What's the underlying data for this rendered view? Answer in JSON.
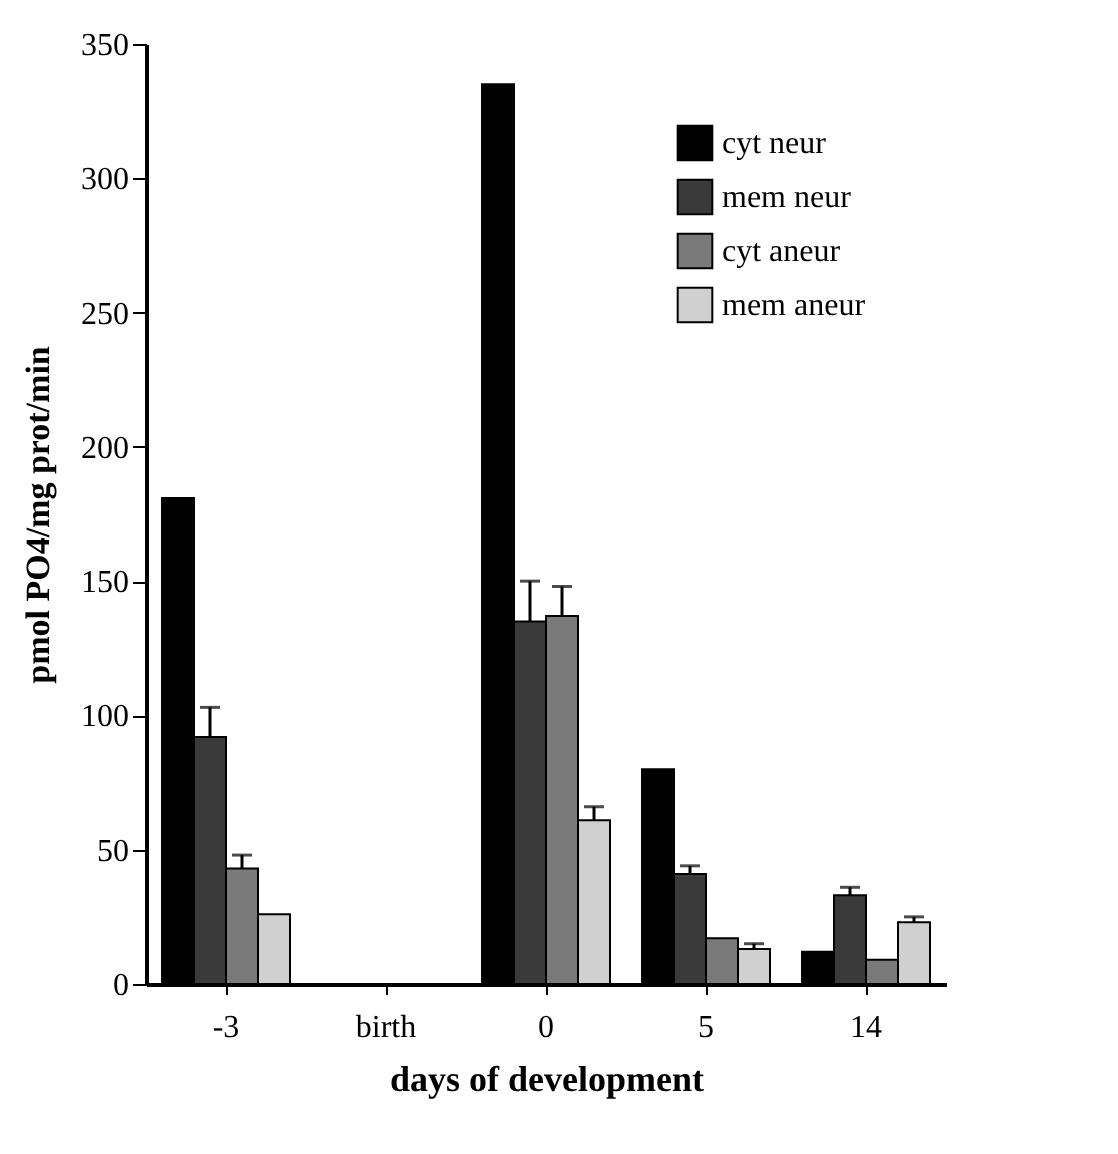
{
  "chart_data": {
    "type": "bar",
    "xlabel": "days of development",
    "ylabel": "pmol PO4/mg prot/min",
    "categories": [
      "-3",
      "birth",
      "0",
      "5",
      "14"
    ],
    "series": [
      {
        "name": "cyt neur",
        "color": "#000000",
        "values": [
          181,
          null,
          335,
          80,
          12
        ]
      },
      {
        "name": "mem  neur",
        "color": "#3a3a3a",
        "values": [
          92,
          null,
          135,
          41,
          33
        ],
        "errors": [
          [
            92,
            103
          ],
          null,
          [
            135,
            150
          ],
          [
            41,
            44
          ],
          [
            33,
            36
          ]
        ]
      },
      {
        "name": "cyt aneur",
        "color": "#7a7a7a",
        "values": [
          43,
          null,
          137,
          17,
          9
        ],
        "errors": [
          [
            43,
            48
          ],
          null,
          [
            137,
            148
          ],
          null,
          null
        ]
      },
      {
        "name": "mem aneur",
        "color": "#d0d0d0",
        "values": [
          26,
          null,
          61,
          13,
          23
        ],
        "errors": [
          null,
          null,
          [
            61,
            66
          ],
          [
            13,
            15
          ],
          [
            23,
            25
          ]
        ]
      }
    ],
    "ylim": [
      0,
      350
    ],
    "yticks": [
      0,
      50,
      100,
      150,
      200,
      250,
      300,
      350
    ],
    "grid": false,
    "legend": "top right"
  }
}
